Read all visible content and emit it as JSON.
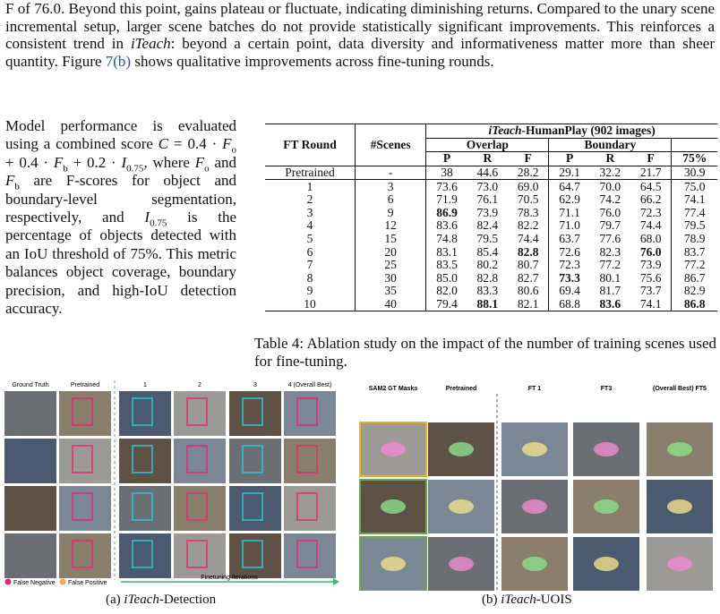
{
  "intro": [
    "F of 76.0. Beyond this point, gains plateau or fluctuate, indicating diminishing returns. Compared to the unary scene incremental setup, larger scene batches do not provide statistically significant improvements. This reinforces a consistent trend in ",
    "iTeach",
    ": beyond a certain point, data diversity and informativeness matter more than sheer quantity. Figure ",
    "7(b)",
    " shows qualitative improvements across fine-tuning rounds."
  ],
  "left": [
    "Model performance is evaluated using a combined score ",
    "C",
    " = 0.4 · ",
    "F",
    "o",
    " + 0.4 · ",
    "F",
    "b",
    " + 0.2 · ",
    "I",
    "0.75",
    ", where ",
    "F",
    "o",
    " and ",
    "F",
    "b",
    " are F-scores for object and boundary-level segmentation, respectively, and ",
    "I",
    "0.75",
    " is the percentage of objects detected with an IoU threshold of 75%. This metric balances object coverage, boundary precision, and high-IoU detection accuracy."
  ],
  "table": {
    "header": {
      "round": "FT Round",
      "scenes": "#Scenes",
      "title": [
        "iTeach",
        "-HumanPlay (902 images)"
      ],
      "groups": [
        "Overlap",
        "Boundary"
      ],
      "metrics": [
        "P",
        "R",
        "F",
        "P",
        "R",
        "F",
        "75%"
      ]
    },
    "rows": [
      [
        "Pretrained",
        "-",
        "38",
        "44.6",
        "28.2",
        "29.1",
        "32.2",
        "21.7",
        "30.9"
      ],
      [
        "1",
        "3",
        "73.6",
        "73.0",
        "69.0",
        "64.7",
        "70.0",
        "64.5",
        "75.0"
      ],
      [
        "2",
        "6",
        "71.9",
        "76.1",
        "70.5",
        "62.9",
        "74.2",
        "66.2",
        "74.1"
      ],
      [
        "3",
        "9",
        "86.9",
        "73.9",
        "78.3",
        "71.1",
        "76.0",
        "72.3",
        "77.4"
      ],
      [
        "4",
        "12",
        "83.6",
        "82.4",
        "82.2",
        "71.0",
        "79.7",
        "74.4",
        "79.5"
      ],
      [
        "5",
        "15",
        "74.8",
        "79.5",
        "74.4",
        "63.7",
        "77.6",
        "68.0",
        "78.9"
      ],
      [
        "6",
        "20",
        "83.1",
        "85.4",
        "82.8",
        "72.6",
        "82.3",
        "76.0",
        "83.7"
      ],
      [
        "7",
        "25",
        "83.5",
        "80.2",
        "80.7",
        "72.3",
        "77.2",
        "73.9",
        "77.2"
      ],
      [
        "8",
        "30",
        "85.0",
        "82.8",
        "82.7",
        "73.3",
        "80.1",
        "75.6",
        "86.7"
      ],
      [
        "9",
        "35",
        "82.0",
        "83.3",
        "80.6",
        "69.4",
        "81.7",
        "73.7",
        "82.9"
      ],
      [
        "10",
        "40",
        "79.4",
        "88.1",
        "82.1",
        "68.8",
        "83.6",
        "74.1",
        "86.8"
      ]
    ],
    "bold_cells": [
      [
        3,
        2
      ],
      [
        6,
        4
      ],
      [
        6,
        7
      ],
      [
        8,
        5
      ],
      [
        10,
        3
      ],
      [
        10,
        6
      ],
      [
        10,
        8
      ]
    ],
    "caption": "Table 4: Ablation study on the impact of the number of training scenes used for fine-tuning."
  },
  "figure_a": {
    "columns": [
      "Ground Truth",
      "Pretrained",
      "1",
      "2",
      "3",
      "4 (Overall Best)"
    ],
    "legend": [
      "False Negative",
      "False Positive"
    ],
    "arrow": "Finetuning Iterations",
    "caption": [
      "(a) ",
      "iTeach",
      "-Detection"
    ]
  },
  "figure_b": {
    "columns": [
      "SAM2 GT Masks",
      "Pretrained",
      "FT 1",
      "FT3",
      "(Overall Best) FT5"
    ],
    "caption": [
      "(b) ",
      "iTeach",
      "-UOIS"
    ]
  }
}
